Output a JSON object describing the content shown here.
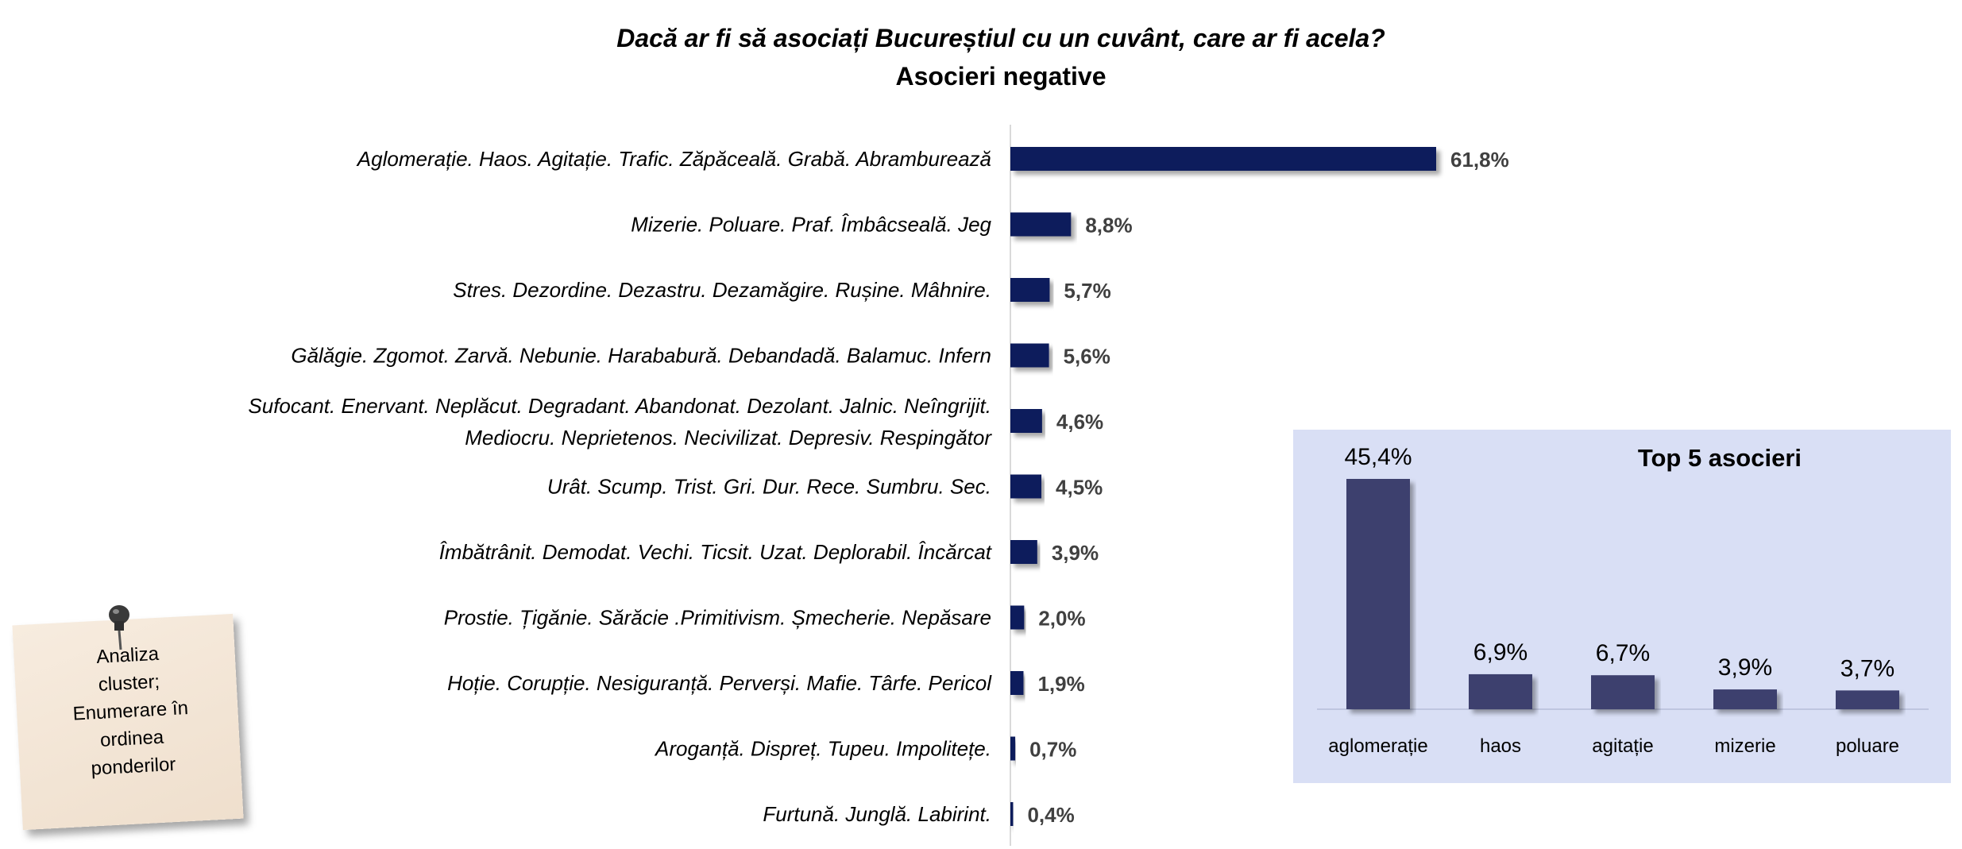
{
  "chart_data": [
    {
      "type": "bar",
      "orientation": "horizontal",
      "title": "Dacă ar fi să asociați Bucureștiul cu un cuvânt, care ar fi acela?",
      "subtitle": "Asocieri negative",
      "categories": [
        [
          "Aglomerație. Haos. Agitație. Trafic. Zăpăceală. Grabă. Abramburează"
        ],
        [
          "Mizerie. Poluare. Praf. Îmbâcseală. Jeg"
        ],
        [
          "Stres. Dezordine. Dezastru. Dezamăgire. Rușine. Mâhnire."
        ],
        [
          "Gălăgie. Zgomot. Zarvă. Nebunie. Harababură. Debandadă. Balamuc. Infern"
        ],
        [
          "Sufocant. Enervant. Neplăcut. Degradant. Abandonat. Dezolant. Jalnic. Neîngrijit.",
          "Mediocru. Neprietenos. Necivilizat. Depresiv. Respingător"
        ],
        [
          "Urât. Scump. Trist. Gri. Dur. Rece. Sumbru. Sec."
        ],
        [
          "Îmbătrânit. Demodat. Vechi. Ticsit. Uzat. Deplorabil. Încărcat"
        ],
        [
          "Prostie. Țigănie. Sărăcie .Primitivism. Șmecherie. Nepăsare"
        ],
        [
          "Hoție. Corupție. Nesiguranță. Perverși. Mafie. Târfe. Pericol"
        ],
        [
          "Aroganță. Dispreț. Tupeu. Impolitețe."
        ],
        [
          "Furtună. Junglă. Labirint."
        ]
      ],
      "values": [
        61.8,
        8.8,
        5.7,
        5.6,
        4.6,
        4.5,
        3.9,
        2.0,
        1.9,
        0.7,
        0.4
      ],
      "value_labels": [
        "61,8%",
        "8,8%",
        "5,7%",
        "5,6%",
        "4,6%",
        "4,5%",
        "3,9%",
        "2,0%",
        "1,9%",
        "0,7%",
        "0,4%"
      ],
      "xlim": [
        0,
        100
      ],
      "bar_color": "#0d1f5c",
      "grid": false
    },
    {
      "type": "bar",
      "title": "Top 5 asocieri",
      "categories": [
        "aglomerație",
        "haos",
        "agitație",
        "mizerie",
        "poluare"
      ],
      "values": [
        45.4,
        6.9,
        6.7,
        3.9,
        3.7
      ],
      "value_labels": [
        "45,4%",
        "6,9%",
        "6,7%",
        "3,9%",
        "3,7%"
      ],
      "ylim": [
        0,
        45.4
      ],
      "bar_color": "#3d3f6e",
      "background": "#d9dff5",
      "grid": false
    }
  ],
  "note": {
    "lines": [
      "Analiza",
      "cluster;",
      "Enumerare în",
      "ordinea",
      "ponderilor"
    ]
  },
  "colors": {
    "axis": "#d9d9d9",
    "label_text": "#000000",
    "value_text": "#404040"
  }
}
